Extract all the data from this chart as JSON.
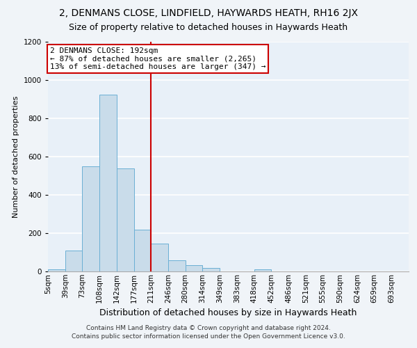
{
  "title1": "2, DENMANS CLOSE, LINDFIELD, HAYWARDS HEATH, RH16 2JX",
  "title2": "Size of property relative to detached houses in Haywards Heath",
  "xlabel": "Distribution of detached houses by size in Haywards Heath",
  "ylabel": "Number of detached properties",
  "bar_color": "#c9dcea",
  "bar_edge_color": "#6aafd4",
  "bar_heights": [
    10,
    110,
    550,
    925,
    540,
    220,
    145,
    58,
    32,
    18,
    0,
    0,
    10,
    0,
    0,
    0,
    0,
    0,
    0,
    0,
    0
  ],
  "all_cats": [
    "5sqm",
    "39sqm",
    "73sqm",
    "108sqm",
    "142sqm",
    "177sqm",
    "211sqm",
    "246sqm",
    "280sqm",
    "314sqm",
    "349sqm",
    "383sqm",
    "418sqm",
    "452sqm",
    "486sqm",
    "521sqm",
    "555sqm",
    "590sqm",
    "624sqm",
    "659sqm",
    "693sqm"
  ],
  "ylim": [
    0,
    1200
  ],
  "yticks": [
    0,
    200,
    400,
    600,
    800,
    1000,
    1200
  ],
  "property_line_x": 6.0,
  "property_line_color": "#cc0000",
  "annotation_box_text": "2 DENMANS CLOSE: 192sqm\n← 87% of detached houses are smaller (2,265)\n13% of semi-detached houses are larger (347) →",
  "annotation_box_color": "#ffffff",
  "annotation_box_edge_color": "#cc0000",
  "footer_line1": "Contains HM Land Registry data © Crown copyright and database right 2024.",
  "footer_line2": "Contains public sector information licensed under the Open Government Licence v3.0.",
  "plot_bg_color": "#e8f0f8",
  "fig_bg_color": "#f0f4f8",
  "grid_color": "#ffffff",
  "title1_fontsize": 10,
  "title2_fontsize": 9,
  "xlabel_fontsize": 9,
  "ylabel_fontsize": 8,
  "tick_fontsize": 7.5,
  "footer_fontsize": 6.5,
  "ann_fontsize": 8
}
